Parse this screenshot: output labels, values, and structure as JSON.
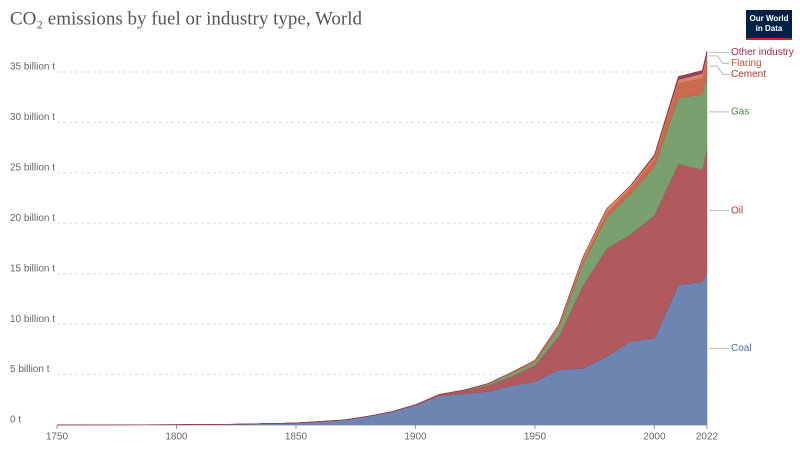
{
  "chart_data": {
    "type": "stacked-area",
    "title": "CO₂ emissions by fuel or industry type, World",
    "logo": [
      "Our World",
      "in Data"
    ],
    "x": [
      1750,
      1775,
      1800,
      1825,
      1850,
      1870,
      1880,
      1890,
      1900,
      1910,
      1920,
      1930,
      1940,
      1950,
      1960,
      1970,
      1980,
      1990,
      2000,
      2010,
      2020,
      2022
    ],
    "xlim": [
      1750,
      2022
    ],
    "xticks": [
      1750,
      1800,
      1850,
      1900,
      1950,
      2000,
      2022
    ],
    "ylim": [
      0,
      35
    ],
    "yticks": [
      {
        "value": 0,
        "label": "0 t"
      },
      {
        "value": 5,
        "label": "5 billion t"
      },
      {
        "value": 10,
        "label": "10 billion t"
      },
      {
        "value": 15,
        "label": "15 billion t"
      },
      {
        "value": 20,
        "label": "20 billion t"
      },
      {
        "value": 25,
        "label": "25 billion t"
      },
      {
        "value": 30,
        "label": "30 billion t"
      },
      {
        "value": 35,
        "label": "35 billion t"
      }
    ],
    "grid": true,
    "series": [
      {
        "name": "Coal",
        "color": "#5f78a8",
        "label_color": "#4e6ea3",
        "values": [
          0.01,
          0.02,
          0.03,
          0.08,
          0.2,
          0.5,
          0.85,
          1.3,
          1.95,
          2.9,
          3.1,
          3.3,
          3.9,
          4.3,
          5.5,
          5.6,
          6.8,
          8.3,
          8.6,
          13.9,
          14.2,
          15.2
        ]
      },
      {
        "name": "Oil",
        "color": "#a9484c",
        "label_color": "#b03a3a",
        "values": [
          0,
          0,
          0,
          0,
          0,
          0,
          0.01,
          0.02,
          0.05,
          0.1,
          0.3,
          0.6,
          0.9,
          1.6,
          3.3,
          8.2,
          10.7,
          10.6,
          12.2,
          12.0,
          11.1,
          12.1
        ]
      },
      {
        "name": "Gas",
        "color": "#6b9660",
        "label_color": "#4f8a3c",
        "values": [
          0,
          0,
          0,
          0,
          0,
          0,
          0,
          0,
          0.01,
          0.03,
          0.05,
          0.15,
          0.3,
          0.35,
          0.8,
          2.1,
          3.1,
          4.0,
          4.8,
          6.5,
          7.5,
          7.5
        ]
      },
      {
        "name": "Cement",
        "color": "#c45a3c",
        "label_color": "#b0362a",
        "values": [
          0,
          0,
          0,
          0,
          0,
          0,
          0,
          0,
          0,
          0,
          0,
          0.03,
          0.04,
          0.07,
          0.15,
          0.3,
          0.45,
          0.57,
          0.8,
          1.5,
          1.6,
          1.6
        ]
      },
      {
        "name": "Flaring",
        "color": "#d37d55",
        "label_color": "#c0552f",
        "values": [
          0,
          0,
          0,
          0,
          0,
          0,
          0,
          0,
          0,
          0,
          0,
          0,
          0.05,
          0.1,
          0.2,
          0.4,
          0.4,
          0.25,
          0.25,
          0.35,
          0.45,
          0.4
        ]
      },
      {
        "name": "Other industry",
        "color": "#8a2d4a",
        "label_color": "#a2224a",
        "values": [
          0,
          0,
          0,
          0,
          0,
          0,
          0,
          0,
          0,
          0,
          0,
          0,
          0,
          0,
          0,
          0,
          0,
          0.05,
          0.15,
          0.3,
          0.3,
          0.3
        ]
      }
    ]
  }
}
